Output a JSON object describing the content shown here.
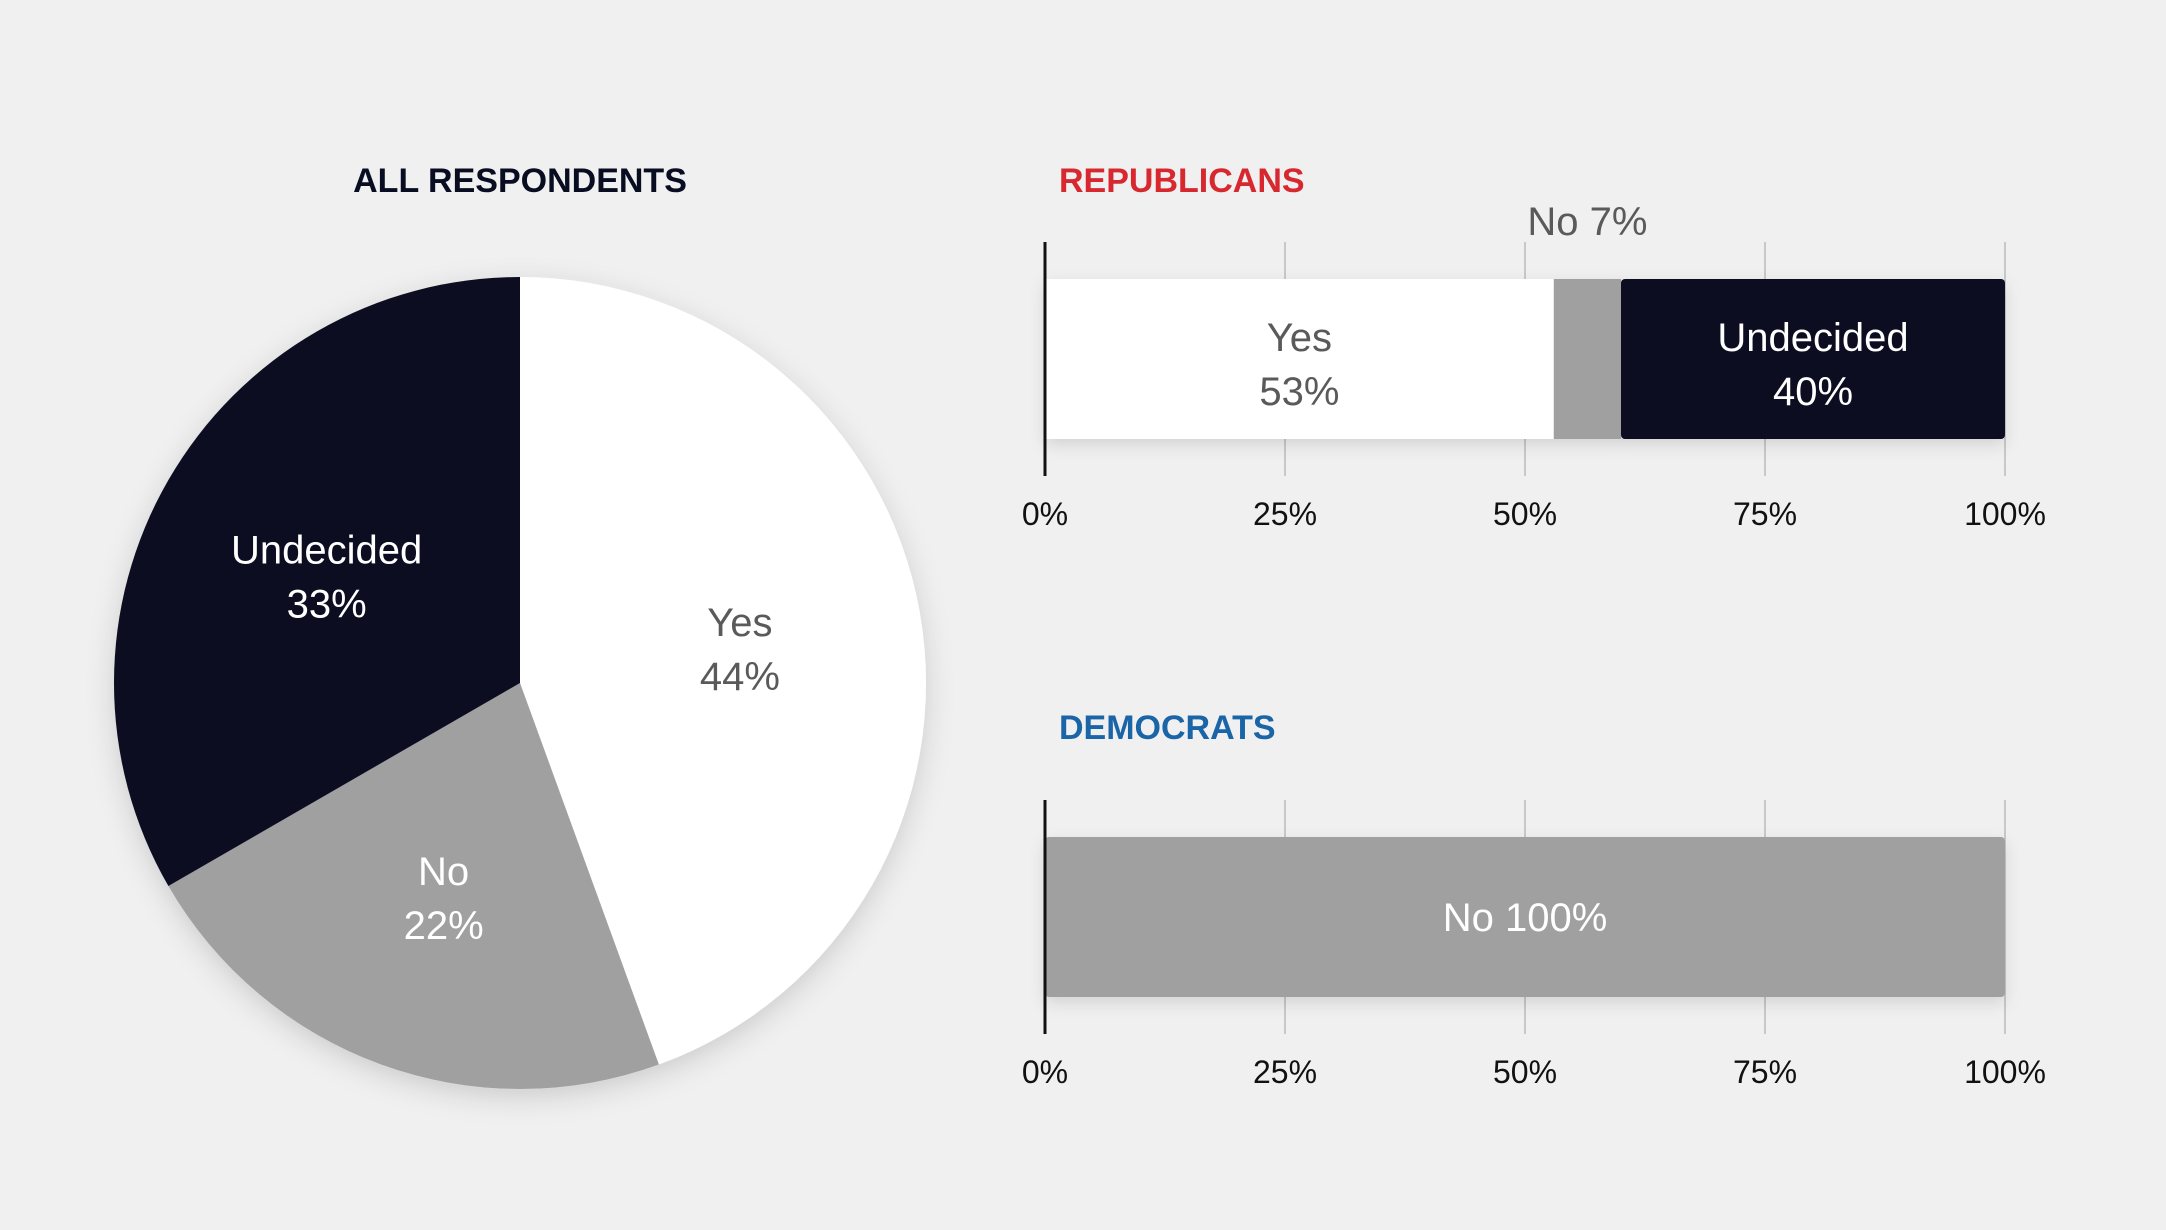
{
  "colors": {
    "background": "#f0f0f0",
    "yes": "#ffffff",
    "no": "#a0a0a0",
    "undecided": "#080d21",
    "title_all": "#080d21",
    "title_republicans": "#d7282f",
    "title_democrats": "#1a64a8",
    "label_dark": "#5a5a5a",
    "label_light": "#ffffff",
    "grid": "#c8c8c8",
    "axis": "#111111"
  },
  "chart_data": [
    {
      "type": "pie",
      "title": "ALL RESPONDENTS",
      "slices": [
        {
          "name": "Yes",
          "value": 44,
          "label": "Yes",
          "value_label": "44%"
        },
        {
          "name": "No",
          "value": 22,
          "label": "No",
          "value_label": "22%"
        },
        {
          "name": "Undecided",
          "value": 33,
          "label": "Undecided",
          "value_label": "33%"
        }
      ]
    },
    {
      "type": "bar",
      "orientation": "horizontal",
      "stacked": true,
      "title": "REPUBLICANS",
      "xlim": [
        0,
        100
      ],
      "ticks": [
        "0%",
        "25%",
        "50%",
        "75%",
        "100%"
      ],
      "grid": true,
      "segments": [
        {
          "name": "Yes",
          "value": 53,
          "label": "Yes",
          "value_label": "53%"
        },
        {
          "name": "No",
          "value": 7,
          "label": "No 7%"
        },
        {
          "name": "Undecided",
          "value": 40,
          "label": "Undecided",
          "value_label": "40%"
        }
      ]
    },
    {
      "type": "bar",
      "orientation": "horizontal",
      "stacked": true,
      "title": "DEMOCRATS",
      "xlim": [
        0,
        100
      ],
      "ticks": [
        "0%",
        "25%",
        "50%",
        "75%",
        "100%"
      ],
      "grid": true,
      "segments": [
        {
          "name": "No",
          "value": 100,
          "label": "No 100%"
        }
      ]
    }
  ]
}
